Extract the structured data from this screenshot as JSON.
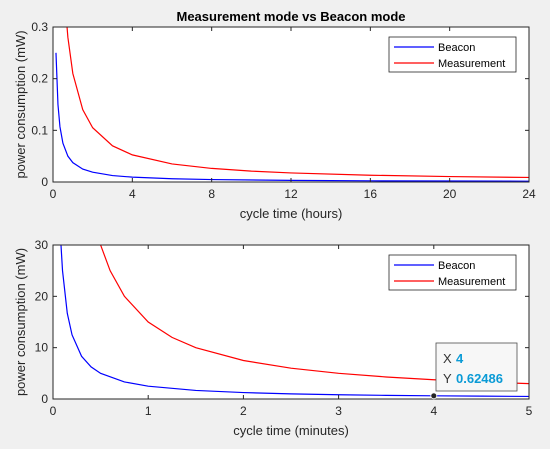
{
  "figure": {
    "colors": {
      "beacon": "#0000ff",
      "measurement": "#ff0000",
      "axes": "#262626",
      "datatip_value": "#0b9bd6"
    }
  },
  "chart_data": [
    {
      "type": "line",
      "title": "Measurement mode vs Beacon mode",
      "xlabel": "cycle time (hours)",
      "ylabel": "power consumption (mW)",
      "xlim": [
        0,
        24
      ],
      "ylim": [
        0,
        0.3
      ],
      "xticks": [
        "0",
        "4",
        "8",
        "12",
        "16",
        "20",
        "24"
      ],
      "yticks": [
        "0",
        "0.1",
        "0.2",
        "0.3"
      ],
      "grid": false,
      "legend_location": "top-right",
      "series": [
        {
          "name": "Beacon",
          "color": "#0000ff",
          "x": [
            0.15,
            0.25,
            0.35,
            0.5,
            0.75,
            1,
            1.5,
            2,
            3,
            4,
            6,
            8,
            12,
            16,
            20,
            24
          ],
          "y": [
            0.25,
            0.15,
            0.107,
            0.075,
            0.05,
            0.0375,
            0.025,
            0.019,
            0.0125,
            0.0094,
            0.0063,
            0.0047,
            0.0031,
            0.0023,
            0.0019,
            0.0016
          ]
        },
        {
          "name": "Measurement",
          "color": "#ff0000",
          "x": [
            0.6,
            0.75,
            1,
            1.5,
            2,
            3,
            4,
            6,
            8,
            10,
            12,
            16,
            20,
            24
          ],
          "y": [
            0.35,
            0.28,
            0.21,
            0.14,
            0.105,
            0.07,
            0.0525,
            0.035,
            0.0263,
            0.021,
            0.0175,
            0.0131,
            0.0105,
            0.0088
          ]
        }
      ]
    },
    {
      "type": "line",
      "title": "",
      "xlabel": "cycle time (minutes)",
      "ylabel": "power consumption (mW)",
      "xlim": [
        0,
        5
      ],
      "ylim": [
        0,
        30
      ],
      "xticks": [
        "0",
        "1",
        "2",
        "3",
        "4",
        "5"
      ],
      "yticks": [
        "0",
        "10",
        "20",
        "30"
      ],
      "grid": false,
      "legend_location": "top-right",
      "series": [
        {
          "name": "Beacon",
          "color": "#0000ff",
          "x": [
            0.08,
            0.1,
            0.15,
            0.2,
            0.3,
            0.4,
            0.5,
            0.75,
            1,
            1.5,
            2,
            2.5,
            3,
            3.5,
            4,
            4.5,
            5
          ],
          "y": [
            31.2,
            25,
            16.7,
            12.5,
            8.33,
            6.25,
            5,
            3.33,
            2.5,
            1.67,
            1.25,
            1.0,
            0.83,
            0.71,
            0.62486,
            0.556,
            0.5
          ]
        },
        {
          "name": "Measurement",
          "color": "#ff0000",
          "x": [
            0.45,
            0.5,
            0.6,
            0.75,
            1,
            1.25,
            1.5,
            2,
            2.5,
            3,
            3.5,
            4,
            4.5,
            5
          ],
          "y": [
            33.3,
            30,
            25,
            20,
            15,
            12,
            10,
            7.5,
            6,
            5,
            4.29,
            3.75,
            3.33,
            3.0
          ]
        }
      ],
      "datatip": {
        "x_label": "X",
        "x_value": "4",
        "y_label": "Y",
        "y_value": "0.62486",
        "point": [
          4,
          0.62486
        ]
      }
    }
  ]
}
